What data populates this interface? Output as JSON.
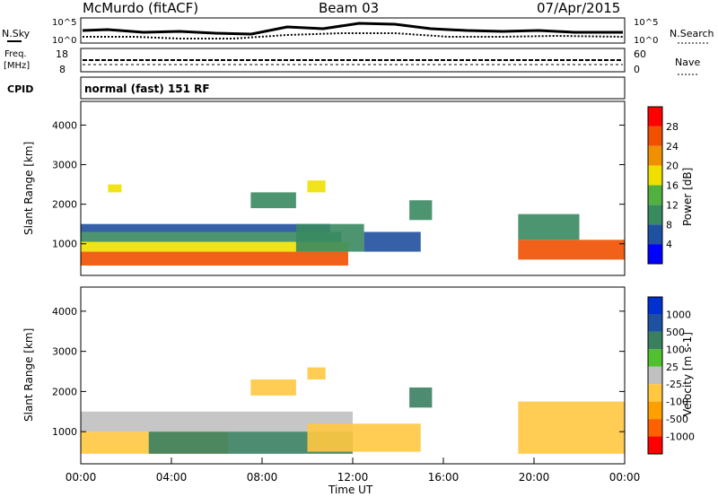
{
  "header": {
    "station": "McMurdo (fitACF)",
    "beam": "Beam 03",
    "date": "07/Apr/2015"
  },
  "noise_panel": {
    "left_label": "N.Sky",
    "right_label": "N.Search",
    "tick_top": "10^5",
    "tick_bottom": "10^0"
  },
  "freq_panel": {
    "left_label_1": "Freq.",
    "left_label_2": "[MHz]",
    "tick_top": "18",
    "tick_bottom": "8",
    "right_label": "Nave",
    "right_tick_top": "60",
    "right_tick_bottom": "0"
  },
  "cpid": {
    "label": "CPID",
    "value": "normal (fast) 151 RF"
  },
  "colors": {
    "power_scale": [
      "#0000ff",
      "#2050a0",
      "#3a8a60",
      "#50b040",
      "#f0e000",
      "#f09000",
      "#f05000",
      "#ff0000"
    ],
    "velocity_scale": [
      "#ff0000",
      "#ff6000",
      "#ffa000",
      "#ffc840",
      "#c0c0c0",
      "#50c030",
      "#3a8060",
      "#2050a0",
      "#0030d0"
    ]
  },
  "chart_data": [
    {
      "type": "heatmap",
      "title": "Power",
      "ylabel": "Slant Range [km]",
      "xlabel": "",
      "ylim": [
        200,
        4600
      ],
      "yticks": [
        "1000",
        "2000",
        "3000",
        "4000"
      ],
      "x_ticks": [
        "00:00",
        "04:00",
        "08:00",
        "12:00",
        "16:00",
        "20:00",
        "00:00"
      ],
      "colorbar_label": "Power [dB]",
      "colorbar_ticks": [
        "4",
        "8",
        "12",
        "16",
        "20",
        "24",
        "28"
      ],
      "regions": [
        {
          "t0": 0.0,
          "t1": 11.8,
          "r0": 450,
          "r1": 800,
          "level": 28
        },
        {
          "t0": 0.0,
          "t1": 11.8,
          "r0": 800,
          "r1": 1050,
          "level": 20
        },
        {
          "t0": 0.0,
          "t1": 11.5,
          "r0": 1050,
          "r1": 1300,
          "level": 12
        },
        {
          "t0": 0.0,
          "t1": 11.0,
          "r0": 1300,
          "r1": 1500,
          "level": 8
        },
        {
          "t0": 9.5,
          "t1": 12.5,
          "r0": 800,
          "r1": 1500,
          "level": 12
        },
        {
          "t0": 12.5,
          "t1": 15.0,
          "r0": 800,
          "r1": 1300,
          "level": 8
        },
        {
          "t0": 1.2,
          "t1": 1.8,
          "r0": 2300,
          "r1": 2500,
          "level": 20
        },
        {
          "t0": 7.5,
          "t1": 9.5,
          "r0": 1900,
          "r1": 2300,
          "level": 10
        },
        {
          "t0": 10.0,
          "t1": 10.8,
          "r0": 2300,
          "r1": 2600,
          "level": 20
        },
        {
          "t0": 14.5,
          "t1": 15.5,
          "r0": 1600,
          "r1": 2100,
          "level": 12
        },
        {
          "t0": 19.3,
          "t1": 24.0,
          "r0": 600,
          "r1": 1100,
          "level": 28
        },
        {
          "t0": 19.3,
          "t1": 22.0,
          "r0": 1100,
          "r1": 1750,
          "level": 12
        }
      ]
    },
    {
      "type": "heatmap",
      "title": "Velocity",
      "ylabel": "Slant Range [km]",
      "xlabel": "Time UT",
      "ylim": [
        200,
        4600
      ],
      "yticks": [
        "1000",
        "2000",
        "3000",
        "4000"
      ],
      "x_ticks": [
        "00:00",
        "04:00",
        "08:00",
        "12:00",
        "16:00",
        "20:00",
        "00:00"
      ],
      "colorbar_label": "Velocity [m s-1]",
      "colorbar_ticks": [
        "1000",
        "500",
        "100",
        "25",
        "-25",
        "-100",
        "-500",
        "-1000"
      ],
      "regions": [
        {
          "t0": 0.0,
          "t1": 6.5,
          "r0": 450,
          "r1": 1000,
          "level": -100
        },
        {
          "t0": 0.0,
          "t1": 12.0,
          "r0": 1000,
          "r1": 1500,
          "level": 0
        },
        {
          "t0": 3.0,
          "t1": 12.0,
          "r0": 450,
          "r1": 1000,
          "level": 100
        },
        {
          "t0": 10.0,
          "t1": 15.0,
          "r0": 500,
          "r1": 1200,
          "level": -100
        },
        {
          "t0": 19.3,
          "t1": 24.0,
          "r0": 450,
          "r1": 1750,
          "level": -100
        },
        {
          "t0": 10.0,
          "t1": 10.8,
          "r0": 2300,
          "r1": 2600,
          "level": -100
        },
        {
          "t0": 7.5,
          "t1": 9.5,
          "r0": 1900,
          "r1": 2300,
          "level": -100
        },
        {
          "t0": 14.5,
          "t1": 15.5,
          "r0": 1600,
          "r1": 2100,
          "level": 100
        }
      ]
    }
  ]
}
